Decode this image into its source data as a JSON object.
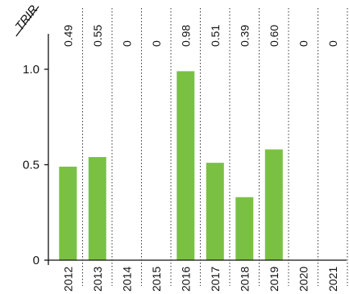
{
  "chart_data": {
    "type": "bar",
    "ylabel": "TRIR",
    "categories": [
      "2012",
      "2013",
      "2014",
      "2015",
      "2016",
      "2017",
      "2018",
      "2019",
      "2020",
      "2021"
    ],
    "values": [
      0.49,
      0.55,
      0,
      0,
      0.98,
      0.51,
      0.39,
      0.6,
      0,
      0
    ],
    "data_labels": [
      "0.49",
      "0.55",
      "0",
      "0",
      "0.98",
      "0.51",
      "0.39",
      "0.60",
      "0",
      "0"
    ],
    "bar_heights_est": [
      0.49,
      0.54,
      0,
      0,
      0.99,
      0.51,
      0.33,
      0.58,
      0,
      0
    ],
    "yticks": [
      "0",
      "0.5",
      "1.0"
    ],
    "ytick_values": [
      0,
      0.5,
      1.0
    ],
    "ylim": [
      0,
      1.2
    ],
    "grid": "dotted vertical separators",
    "bar_color": "#7ac143"
  }
}
